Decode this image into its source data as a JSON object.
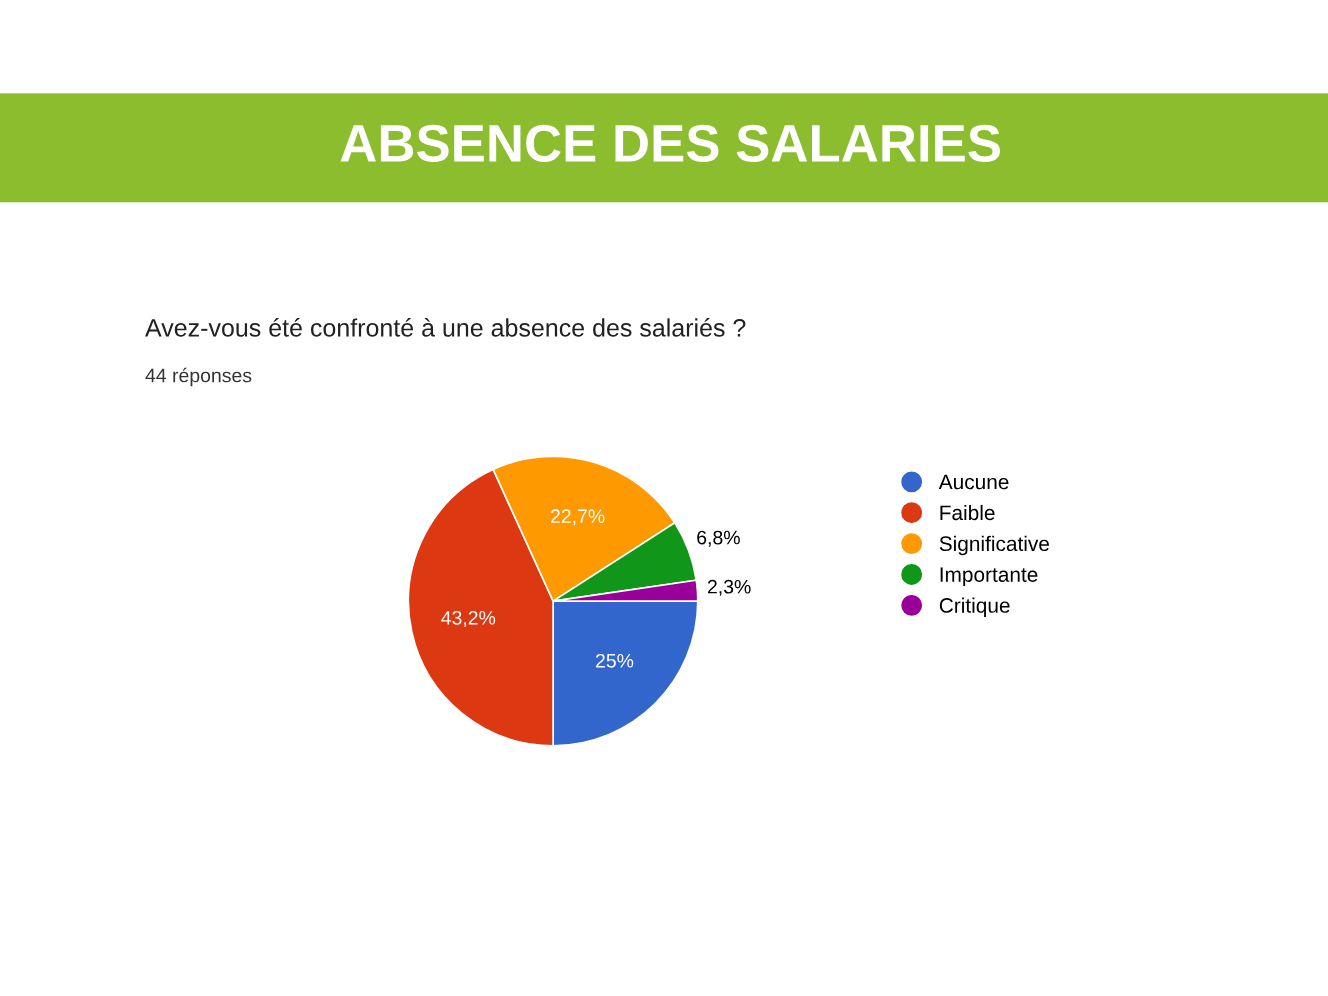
{
  "chart_data": {
    "type": "pie",
    "title": "ABSENCE DES SALARIES",
    "subtitle": "Avez-vous été confronté à une absence des salariés ?",
    "annotations": [
      "44 réponses"
    ],
    "categories": [
      "Aucune",
      "Faible",
      "Significative",
      "Importante",
      "Critique"
    ],
    "values": [
      25,
      43.2,
      22.7,
      6.8,
      2.3
    ],
    "colors": [
      "#3366cc",
      "#dc3912",
      "#ff9900",
      "#109618",
      "#990099"
    ],
    "value_labels": [
      "25%",
      "43,2%",
      "22,7%",
      "6,8%",
      "2,3%"
    ],
    "legend": "right"
  }
}
